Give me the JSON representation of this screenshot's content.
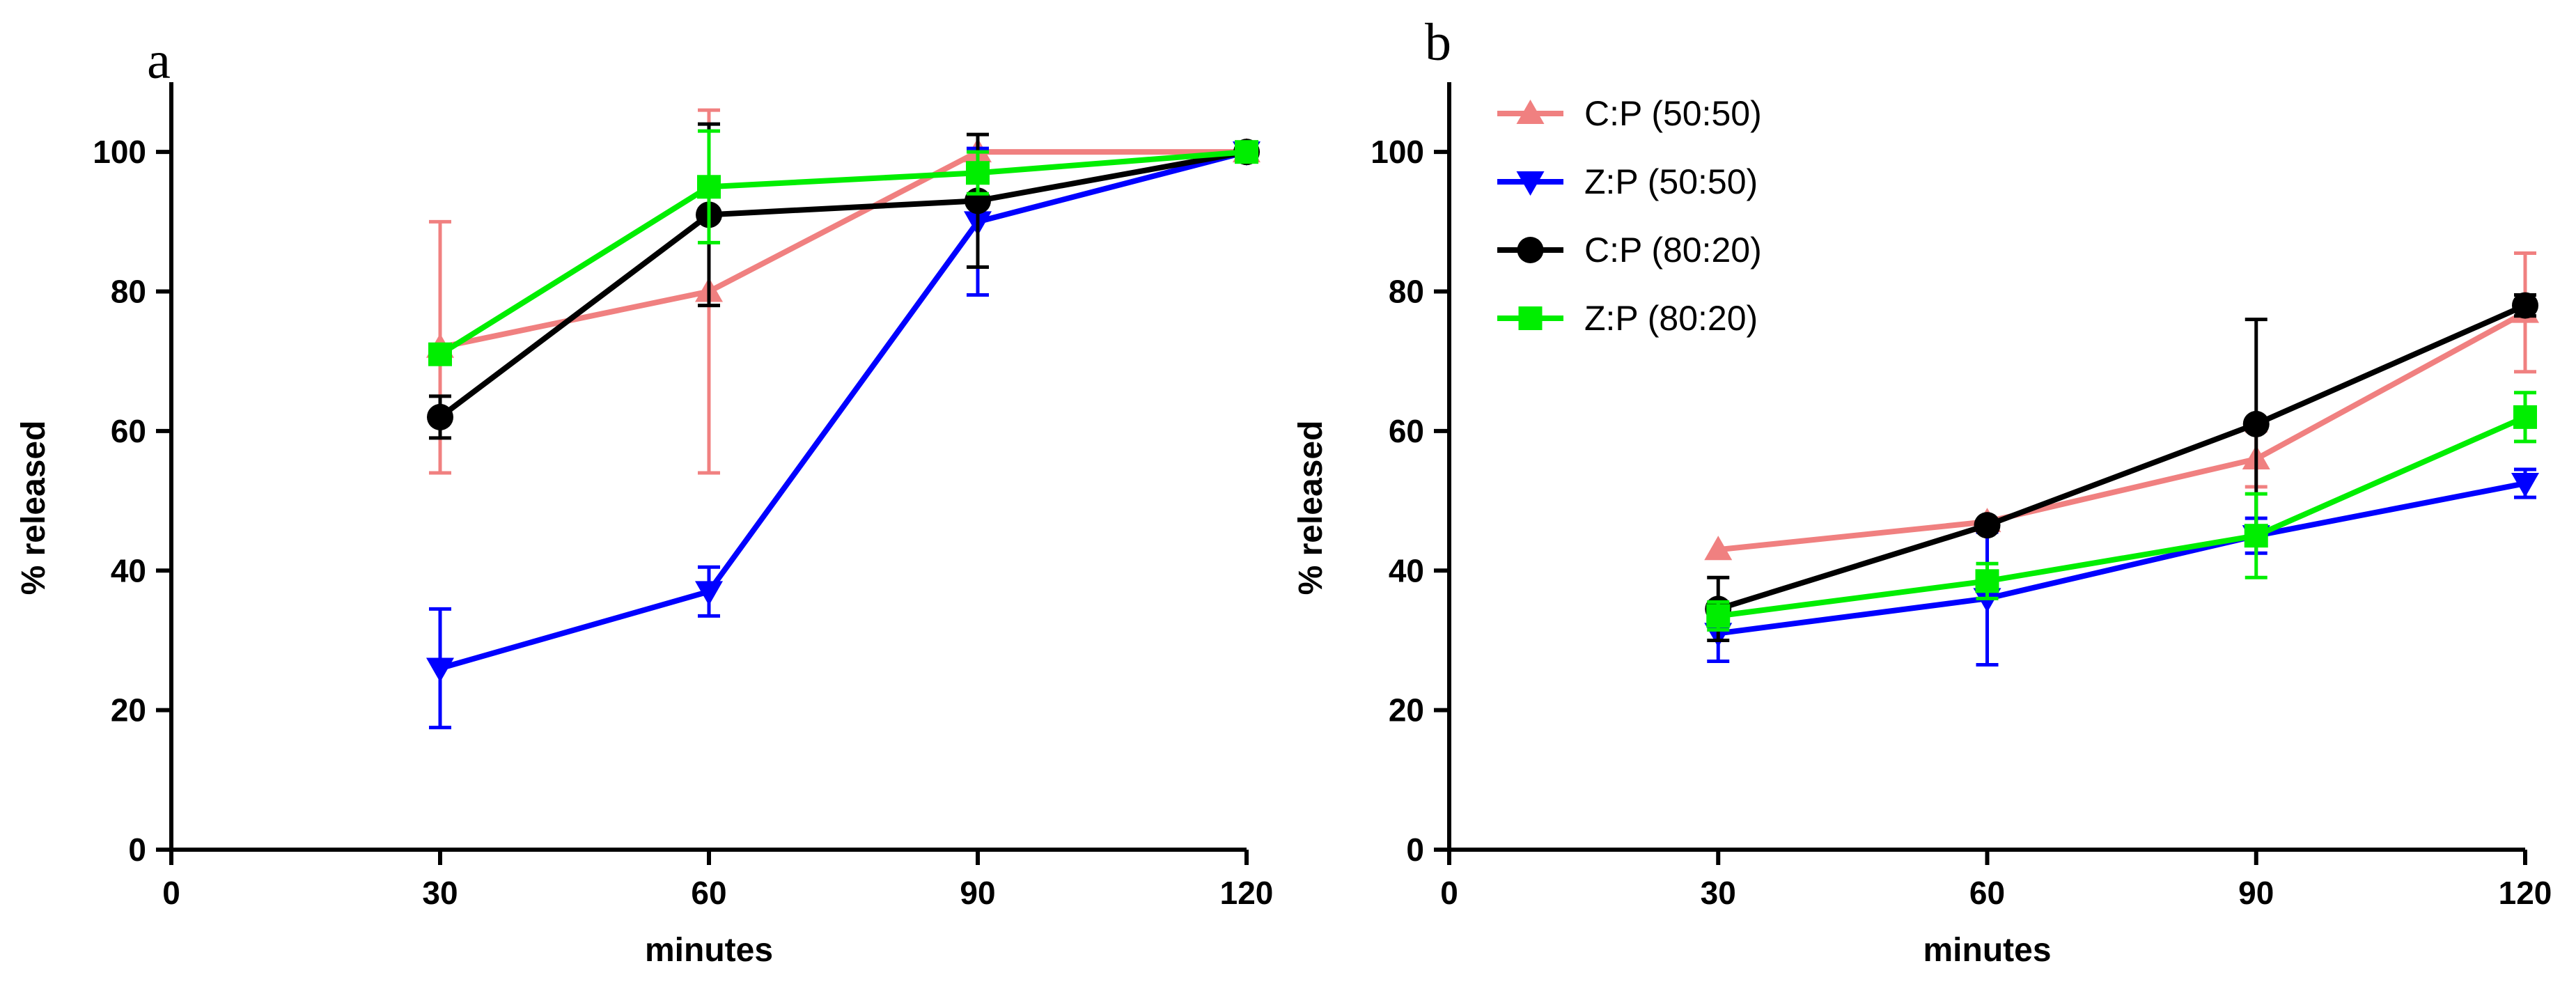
{
  "chart_data": [
    {
      "type": "line",
      "panel_label": "a",
      "xlabel": "minutes",
      "ylabel": "% released",
      "xlim": [
        0,
        120
      ],
      "ylim": [
        0,
        110
      ],
      "xticks": [
        0,
        30,
        60,
        90,
        120
      ],
      "yticks": [
        0,
        20,
        40,
        60,
        80,
        100
      ],
      "x": [
        30,
        60,
        90,
        120
      ],
      "series": [
        {
          "name": "C:P (50:50)",
          "color": "#f08080",
          "marker": "triangle-up",
          "values": [
            72,
            80,
            100,
            100
          ],
          "errors": [
            18,
            26,
            0,
            0
          ]
        },
        {
          "name": "Z:P (50:50)",
          "color": "#0000ff",
          "marker": "triangle-down",
          "values": [
            26,
            37,
            90,
            100
          ],
          "errors": [
            8.5,
            3.5,
            10.5,
            0.5
          ]
        },
        {
          "name": "C:P (80:20)",
          "color": "#000000",
          "marker": "circle",
          "values": [
            62,
            91,
            93,
            100
          ],
          "errors": [
            3,
            13,
            9.5,
            0.5
          ]
        },
        {
          "name": "Z:P (80:20)",
          "color": "#00ee00",
          "marker": "square",
          "values": [
            71,
            95,
            97,
            100
          ],
          "errors": [
            1,
            8,
            3,
            0.5
          ]
        }
      ]
    },
    {
      "type": "line",
      "panel_label": "b",
      "xlabel": "minutes",
      "ylabel": "% released",
      "xlim": [
        0,
        120
      ],
      "ylim": [
        0,
        110
      ],
      "xticks": [
        0,
        30,
        60,
        90,
        120
      ],
      "yticks": [
        0,
        20,
        40,
        60,
        80,
        100
      ],
      "legend_position": "top-left",
      "x": [
        30,
        60,
        90,
        120
      ],
      "series": [
        {
          "name": "C:P (50:50)",
          "color": "#f08080",
          "marker": "triangle-up",
          "values": [
            43,
            47,
            56,
            77
          ],
          "errors": [
            0,
            0,
            4,
            8.5
          ]
        },
        {
          "name": "Z:P (50:50)",
          "color": "#0000ff",
          "marker": "triangle-down",
          "values": [
            31,
            36,
            45,
            52.5
          ],
          "errors": [
            4,
            9.5,
            2.5,
            2
          ]
        },
        {
          "name": "C:P (80:20)",
          "color": "#000000",
          "marker": "circle",
          "values": [
            34.5,
            46.5,
            61,
            78
          ],
          "errors": [
            4.5,
            0,
            15,
            1.5
          ]
        },
        {
          "name": "Z:P (80:20)",
          "color": "#00ee00",
          "marker": "square",
          "values": [
            33.5,
            38.5,
            45,
            62
          ],
          "errors": [
            2,
            2.5,
            6,
            3.5
          ]
        }
      ]
    }
  ]
}
